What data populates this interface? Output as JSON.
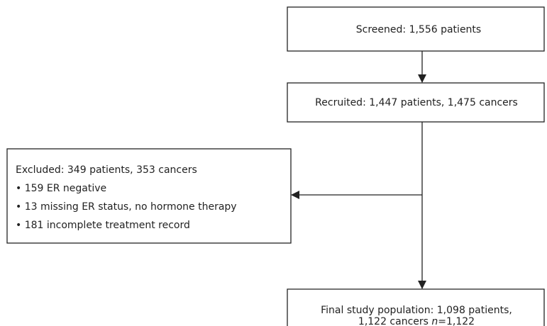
{
  "nodes": [
    {
      "label": "Screened: 1,556 patients"
    },
    {
      "label": "Recruited: 1,447 patients, 1,475 cancers"
    },
    {
      "label": "Excluded: 349 patients, 353 cancers",
      "items": [
        "• 159 ER negative",
        "• 13 missing ER status, no hormone therapy",
        "• 181 incomplete treatment record"
      ]
    },
    {
      "label": "Final study population: 1,098 patients,",
      "line2": [
        "1,122 cancers ",
        "n",
        "=1,122"
      ]
    }
  ]
}
